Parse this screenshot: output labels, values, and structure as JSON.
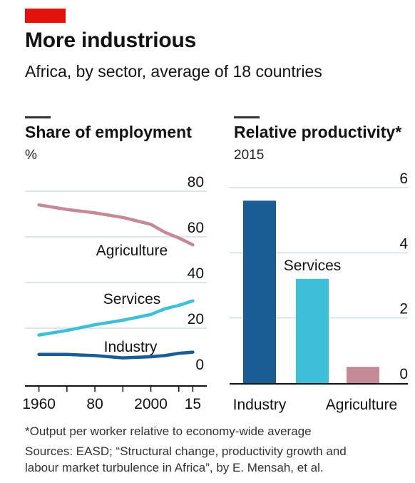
{
  "header": {
    "title": "More industrious",
    "subtitle": "Africa, by sector, average of 18 countries"
  },
  "footnote": {
    "note": "*Output per worker relative to economy-wide average",
    "sources_line1": "Sources: EASD; “Structural change, productivity growth and",
    "sources_line2": "labour market turbulence in Africa”, by E. Mensah, et al."
  },
  "colors": {
    "accent": "#e3120b",
    "agriculture": "#c48a98",
    "services": "#3dbfd9",
    "industry": "#1a5d94",
    "gridline": "#d3dce5"
  },
  "chart_data": [
    {
      "type": "line",
      "title": "Share of employment",
      "unit": "%",
      "x_ticks": [
        "1960",
        "80",
        "2000",
        "15"
      ],
      "x_tick_values": [
        1960,
        1980,
        2000,
        2015
      ],
      "ylim": [
        0,
        80
      ],
      "y_ticks": [
        0,
        20,
        40,
        60,
        80
      ],
      "grid": true,
      "series": [
        {
          "name": "Agriculture",
          "color": "#c48a98",
          "points": [
            [
              1960,
              74
            ],
            [
              1970,
              72
            ],
            [
              1980,
              70.5
            ],
            [
              1990,
              68.5
            ],
            [
              2000,
              65.5
            ],
            [
              2005,
              62
            ],
            [
              2010,
              59.5
            ],
            [
              2015,
              56.5
            ]
          ]
        },
        {
          "name": "Services",
          "color": "#3dbfd9",
          "points": [
            [
              1960,
              17
            ],
            [
              1970,
              19
            ],
            [
              1980,
              21.5
            ],
            [
              1990,
              23.5
            ],
            [
              2000,
              26
            ],
            [
              2005,
              28.5
            ],
            [
              2010,
              30
            ],
            [
              2015,
              32
            ]
          ]
        },
        {
          "name": "Industry",
          "color": "#1a5d94",
          "points": [
            [
              1960,
              8.5
            ],
            [
              1970,
              8.5
            ],
            [
              1980,
              8
            ],
            [
              1990,
              7
            ],
            [
              2000,
              7.5
            ],
            [
              2005,
              8
            ],
            [
              2010,
              9
            ],
            [
              2015,
              9.5
            ]
          ]
        }
      ]
    },
    {
      "type": "bar",
      "title": "Relative productivity*",
      "subtitle": "2015",
      "ylim": [
        0,
        6
      ],
      "y_ticks": [
        0,
        2,
        4,
        6
      ],
      "grid": true,
      "categories": [
        "Industry",
        "Services",
        "Agriculture"
      ],
      "values": [
        5.6,
        3.2,
        0.5
      ],
      "colors": [
        "#1a5d94",
        "#3dbfd9",
        "#c48a98"
      ],
      "x_labels_shown": [
        "Industry",
        "Agriculture"
      ],
      "bar_labels": [
        "",
        "Services",
        ""
      ]
    }
  ]
}
